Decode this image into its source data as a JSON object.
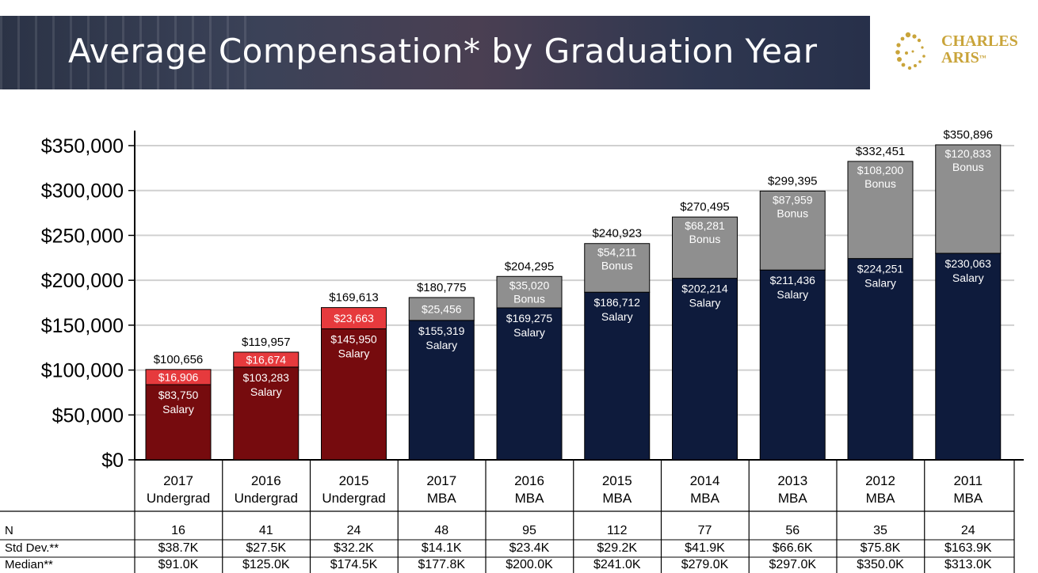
{
  "header": {
    "title": "Average Compensation* by Graduation Year"
  },
  "logo": {
    "line1": "CHARLES",
    "line2": "ARIS",
    "tm": "™"
  },
  "colors": {
    "undergrad_salary": "#760b0e",
    "undergrad_bonus": "#e63a3d",
    "mba_salary": "#0e1b3c",
    "mba_bonus": "#8f8f8f",
    "logo_gold": "#c9a43a"
  },
  "chart_data": {
    "type": "bar",
    "stacked": true,
    "categories": [
      [
        "2017",
        "Undergrad"
      ],
      [
        "2016",
        "Undergrad"
      ],
      [
        "2015",
        "Undergrad"
      ],
      [
        "2017",
        "MBA"
      ],
      [
        "2016",
        "MBA"
      ],
      [
        "2015",
        "MBA"
      ],
      [
        "2014",
        "MBA"
      ],
      [
        "2013",
        "MBA"
      ],
      [
        "2012",
        "MBA"
      ],
      [
        "2011",
        "MBA"
      ]
    ],
    "series": [
      {
        "name": "Salary",
        "values": [
          83750,
          103283,
          145950,
          155319,
          169275,
          186712,
          202214,
          211436,
          224251,
          230063
        ]
      },
      {
        "name": "Bonus",
        "values": [
          16906,
          16674,
          23663,
          25456,
          35020,
          54211,
          68281,
          87959,
          108200,
          120833
        ]
      }
    ],
    "salary_labels": [
      "$83,750",
      "$103,283",
      "$145,950",
      "$155,319",
      "$169,275",
      "$186,712",
      "$202,214",
      "$211,436",
      "$224,251",
      "$230,063"
    ],
    "bonus_labels": [
      "$16,906",
      "$16,674",
      "$23,663",
      "$25,456",
      "$35,020",
      "$54,211",
      "$68,281",
      "$87,959",
      "$108,200",
      "$120,833"
    ],
    "bonus_word_shown": [
      false,
      false,
      false,
      false,
      true,
      true,
      true,
      true,
      true,
      true
    ],
    "salary_word": "Salary",
    "bonus_word": "Bonus",
    "totals": [
      100656,
      119957,
      169613,
      180775,
      204295,
      240923,
      270495,
      299395,
      332451,
      350896
    ],
    "total_labels": [
      "$100,656",
      "$119,957",
      "$169,613",
      "$180,775",
      "$204,295",
      "$240,923",
      "$270,495",
      "$299,395",
      "$332,451",
      "$350,896"
    ],
    "program": [
      "undergrad",
      "undergrad",
      "undergrad",
      "mba",
      "mba",
      "mba",
      "mba",
      "mba",
      "mba",
      "mba"
    ],
    "ylim": [
      0,
      350000
    ],
    "yticks": [
      0,
      50000,
      100000,
      150000,
      200000,
      250000,
      300000,
      350000
    ],
    "ytick_labels": [
      "$0",
      "$50,000",
      "$100,000",
      "$150,000",
      "$200,000",
      "$250,000",
      "$300,000",
      "$350,000"
    ],
    "grid": true,
    "legend": "none",
    "table": {
      "row_labels": [
        "N",
        "Std Dev.**",
        "Median**"
      ],
      "rows": [
        [
          "16",
          "41",
          "24",
          "48",
          "95",
          "112",
          "77",
          "56",
          "35",
          "24"
        ],
        [
          "$38.7K",
          "$27.5K",
          "$32.2K",
          "$14.1K",
          "$23.4K",
          "$29.2K",
          "$41.9K",
          "$66.6K",
          "$75.8K",
          "$163.9K"
        ],
        [
          "$91.0K",
          "$125.0K",
          "$174.5K",
          "$177.8K",
          "$200.0K",
          "$241.0K",
          "$279.0K",
          "$297.0K",
          "$350.0K",
          "$313.0K"
        ]
      ]
    }
  }
}
